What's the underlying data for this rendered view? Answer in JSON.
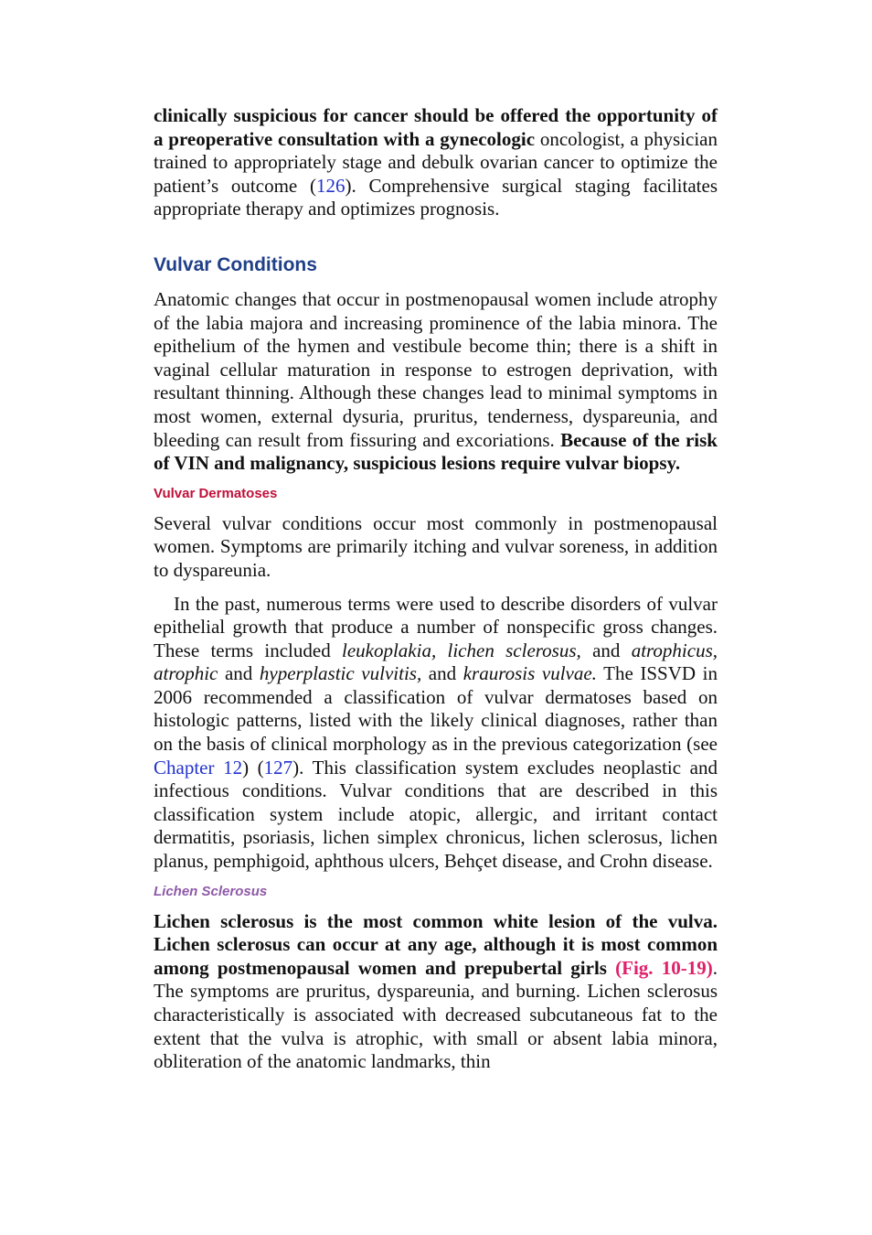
{
  "p1": [
    "clinically suspicious for cancer should be offered the opportunity of a preoperative consultation with a gynecologic",
    " oncologist, a physician trained to appropriately stage and debulk ovarian cancer to optimize the patient’s outcome (",
    "126",
    "). Comprehensive surgical staging facilitates appropriate therapy and optimizes prognosis."
  ],
  "heading": "Vulvar Conditions",
  "p2": [
    "Anatomic changes that occur in postmenopausal women include atrophy of the labia majora and increasing prominence of the labia minora. The epithelium of the hymen and vestibule become thin; there is a shift in vaginal cellular maturation in response to estrogen deprivation, with resultant thinning. Although these changes lead to minimal symptoms in most women, external dysuria, pruritus, tenderness, dyspareunia, and bleeding can result from fissuring and excoriations. ",
    "Because of the risk of VIN and malignancy, suspicious lesions require vulvar biopsy."
  ],
  "subheading1": "Vulvar Dermatoses",
  "p3": "Several vulvar conditions occur most commonly in postmenopausal women. Symptoms are primarily itching and vulvar soreness, in addition to dyspareunia.",
  "p4": [
    "In the past, numerous terms were used to describe disorders of vulvar epithelial growth that produce a number of nonspecific gross changes. These terms included ",
    "leukoplakia, lichen sclerosus,",
    " and ",
    "atrophicus, atrophic",
    " and ",
    "hyperplastic vulvitis,",
    " and ",
    "kraurosis vulvae.",
    " The ISSVD in 2006 recommended a classification of vulvar dermatoses based on histologic patterns, listed with the likely clinical diagnoses, rather than on the basis of clinical morphology as in the previous categorization (see ",
    "Chapter 12",
    ") (",
    "127",
    "). This classification system excludes neoplastic and infectious conditions. Vulvar conditions that are described in this classification system include atopic, allergic, and irritant contact dermatitis, psoriasis, lichen simplex chronicus, lichen sclerosus, lichen planus, pemphigoid, aphthous ulcers, Behçet disease, and Crohn disease."
  ],
  "subheading2": "Lichen Sclerosus",
  "p5": [
    "Lichen sclerosus is the most common white lesion of the vulva. Lichen sclerosus can occur at any age, although it is most common among postmenopausal women and prepubertal girls ",
    "(Fig. 10-19)",
    ". The symptoms are pruritus, dyspareunia, and burning. Lichen sclerosus characteristically is associated with decreased subcutaneous fat to the extent that the vulva is atrophic, with small or absent labia minora, obliteration of the anatomic landmarks, thin"
  ]
}
